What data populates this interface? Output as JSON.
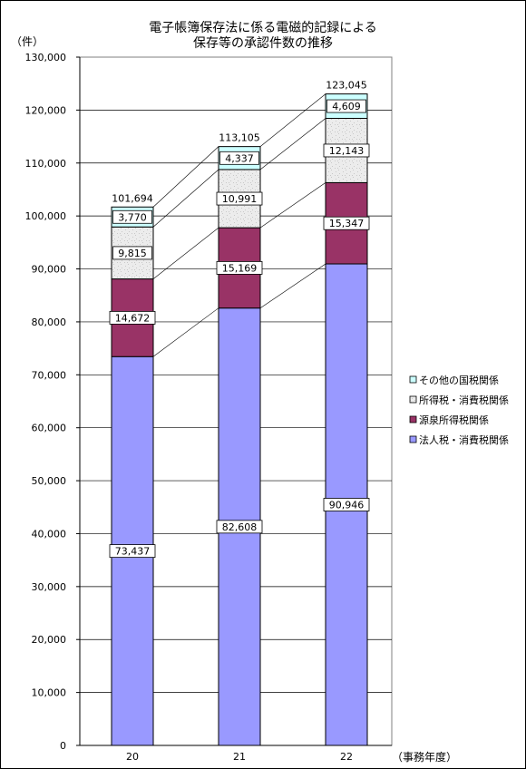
{
  "chart_data": {
    "type": "bar",
    "stacked": true,
    "title": "電子帳簿保存法に係る電磁的記録による",
    "subtitle": "保存等の承認件数の推移",
    "ylabel": "（件）",
    "xlabel": "（事務年度）",
    "categories": [
      "20",
      "21",
      "22"
    ],
    "ylim": [
      0,
      130000
    ],
    "ytick_step": 10000,
    "ytick_labels": [
      "0",
      "10,000",
      "20,000",
      "30,000",
      "40,000",
      "50,000",
      "60,000",
      "70,000",
      "80,000",
      "90,000",
      "100,000",
      "110,000",
      "120,000",
      "130,000"
    ],
    "grid": true,
    "legend_position": "right",
    "series": [
      {
        "name": "法人税・消費税関係",
        "values": [
          73437,
          82608,
          90946
        ],
        "labels": [
          "73,437",
          "82,608",
          "90,946"
        ],
        "color": "#9999ff"
      },
      {
        "name": "源泉所得税関係",
        "values": [
          14672,
          15169,
          15347
        ],
        "labels": [
          "14,672",
          "15,169",
          "15,347"
        ],
        "color": "#993366"
      },
      {
        "name": "所得税・消費税関係",
        "values": [
          9815,
          10991,
          12143
        ],
        "labels": [
          "9,815",
          "10,991",
          "12,143"
        ],
        "color": "#e6e6e6"
      },
      {
        "name": "その他の国税関係",
        "values": [
          3770,
          4337,
          4609
        ],
        "labels": [
          "3,770",
          "4,337",
          "4,609"
        ],
        "color": "#ccffff"
      }
    ],
    "totals": [
      101694,
      113105,
      123045
    ],
    "total_labels": [
      "101,694",
      "113,105",
      "123,045"
    ]
  }
}
